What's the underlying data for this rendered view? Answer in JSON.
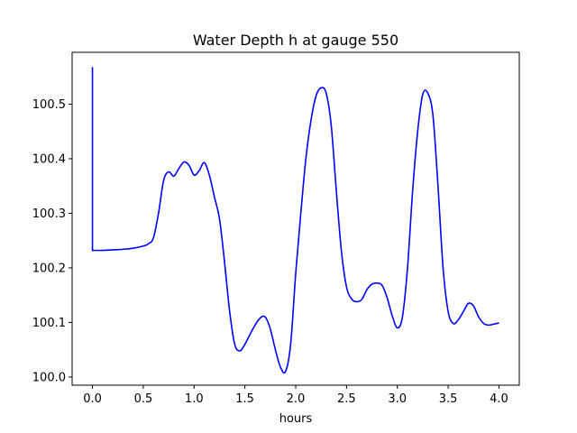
{
  "chart_data": {
    "type": "line",
    "title": "Water Depth h at gauge 550",
    "xlabel": "hours",
    "ylabel": "",
    "xlim": [
      -0.2,
      4.2
    ],
    "ylim": [
      99.985,
      100.595
    ],
    "xticks": [
      0.0,
      0.5,
      1.0,
      1.5,
      2.0,
      2.5,
      3.0,
      3.5,
      4.0
    ],
    "xtick_labels": [
      "0.0",
      "0.5",
      "1.0",
      "1.5",
      "2.0",
      "2.5",
      "3.0",
      "3.5",
      "4.0"
    ],
    "yticks": [
      100.0,
      100.1,
      100.2,
      100.3,
      100.4,
      100.5
    ],
    "ytick_labels": [
      "100.0",
      "100.1",
      "100.2",
      "100.3",
      "100.4",
      "100.5"
    ],
    "grid": false,
    "legend": "none",
    "series": [
      {
        "color": "#0000ff",
        "x": [
          0.0,
          0.0,
          0.01,
          0.1,
          0.2,
          0.3,
          0.4,
          0.5,
          0.55,
          0.6,
          0.65,
          0.7,
          0.75,
          0.8,
          0.85,
          0.9,
          0.95,
          1.0,
          1.05,
          1.1,
          1.15,
          1.2,
          1.25,
          1.3,
          1.35,
          1.4,
          1.45,
          1.5,
          1.55,
          1.6,
          1.65,
          1.7,
          1.75,
          1.8,
          1.85,
          1.9,
          1.95,
          2.0,
          2.05,
          2.1,
          2.15,
          2.2,
          2.25,
          2.3,
          2.35,
          2.4,
          2.45,
          2.5,
          2.55,
          2.6,
          2.65,
          2.7,
          2.75,
          2.8,
          2.85,
          2.9,
          2.95,
          3.0,
          3.05,
          3.1,
          3.15,
          3.2,
          3.25,
          3.3,
          3.35,
          3.4,
          3.45,
          3.5,
          3.55,
          3.6,
          3.65,
          3.7,
          3.75,
          3.8,
          3.85,
          3.9,
          3.95,
          4.0
        ],
        "y": [
          100.568,
          100.232,
          100.232,
          100.232,
          100.233,
          100.234,
          100.236,
          100.24,
          100.244,
          100.255,
          100.3,
          100.36,
          100.376,
          100.368,
          100.382,
          100.394,
          100.388,
          100.37,
          100.378,
          100.393,
          100.37,
          100.33,
          100.29,
          100.21,
          100.12,
          100.06,
          100.048,
          100.06,
          100.078,
          100.095,
          100.108,
          100.11,
          100.088,
          100.05,
          100.018,
          100.01,
          100.06,
          100.19,
          100.3,
          100.4,
          100.47,
          100.515,
          100.53,
          100.52,
          100.46,
          100.34,
          100.23,
          100.165,
          100.143,
          100.138,
          100.142,
          100.16,
          100.17,
          100.172,
          100.168,
          100.145,
          100.112,
          100.09,
          100.11,
          100.2,
          100.34,
          100.45,
          100.518,
          100.52,
          100.48,
          100.35,
          100.2,
          100.12,
          100.098,
          100.105,
          100.12,
          100.135,
          100.13,
          100.11,
          100.098,
          100.095,
          100.097,
          100.099
        ]
      }
    ]
  }
}
